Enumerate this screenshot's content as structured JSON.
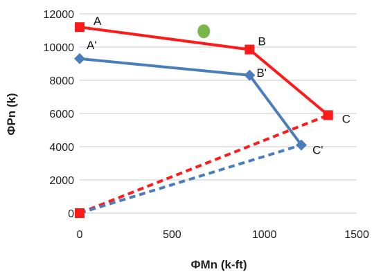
{
  "chart_data": {
    "type": "line",
    "title": "",
    "xlabel": "ΦMn (k-ft)",
    "ylabel": "ΦPn (k)",
    "xlim": [
      0,
      1500
    ],
    "ylim": [
      0,
      12000
    ],
    "x_ticks": [
      0,
      500,
      1000,
      1500
    ],
    "y_ticks": [
      0,
      2000,
      4000,
      6000,
      8000,
      10000,
      12000
    ],
    "x_tick_labels": [
      "0",
      "500",
      "1000",
      "1500"
    ],
    "y_tick_labels": [
      "0",
      "2000",
      "4000",
      "6000",
      "8000",
      "10000",
      "12000"
    ],
    "grid": true,
    "series": [
      {
        "color": "#ff1a1a",
        "marker": "square",
        "line_style": "solid",
        "points": [
          {
            "x": 0,
            "y": 11200,
            "label": "A"
          },
          {
            "x": 920,
            "y": 9850,
            "label": "B"
          },
          {
            "x": 1345,
            "y": 5900,
            "label": "C"
          }
        ]
      },
      {
        "color": "#4a7ebb",
        "marker": "diamond",
        "line_style": "solid",
        "points": [
          {
            "x": 0,
            "y": 9300,
            "label": "A'"
          },
          {
            "x": 920,
            "y": 8300,
            "label": "B'"
          },
          {
            "x": 1200,
            "y": 4100,
            "label": "C'"
          }
        ]
      },
      {
        "color": "#ff1a1a",
        "marker": "square",
        "line_style": "dashed",
        "points": [
          {
            "x": 0,
            "y": 0
          },
          {
            "x": 1345,
            "y": 5900
          }
        ]
      },
      {
        "color": "#4a7ebb",
        "marker": "none",
        "line_style": "dashed",
        "points": [
          {
            "x": 0,
            "y": 0
          },
          {
            "x": 1200,
            "y": 4100
          }
        ]
      }
    ],
    "extra_points": [
      {
        "x": 672,
        "y": 10950,
        "color": "#7ab648",
        "marker": "circle"
      }
    ]
  }
}
